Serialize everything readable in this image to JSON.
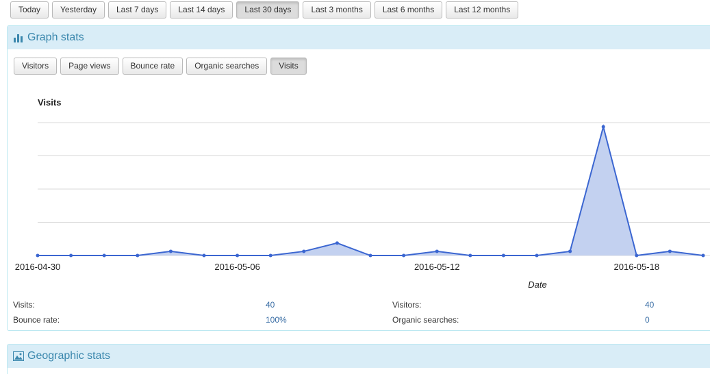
{
  "toolbar": {
    "buttons": [
      "Today",
      "Yesterday",
      "Last 7 days",
      "Last 14 days",
      "Last 30 days",
      "Last 3 months",
      "Last 6 months",
      "Last 12 months"
    ],
    "active": 4
  },
  "graph_panel": {
    "title": "Graph stats",
    "buttons": [
      "Visitors",
      "Page views",
      "Bounce rate",
      "Organic searches",
      "Visits"
    ],
    "active": 4,
    "stats": [
      [
        "Visits:",
        "40"
      ],
      [
        "Visitors:",
        "40"
      ],
      [
        "Bounce rate:",
        "100%"
      ],
      [
        "Organic searches:",
        "0"
      ]
    ]
  },
  "chart_data": {
    "type": "area",
    "title": "Visits",
    "x_label": "Date",
    "categories": [
      "2016-04-30",
      null,
      null,
      null,
      null,
      null,
      "2016-05-06",
      null,
      null,
      null,
      null,
      null,
      "2016-05-12",
      null,
      null,
      null,
      null,
      null,
      "2016-05-18",
      null,
      null
    ],
    "values": [
      0,
      0,
      0,
      0,
      1,
      0,
      0,
      0,
      1,
      3,
      0,
      0,
      1,
      0,
      0,
      0,
      1,
      31,
      0,
      1,
      0
    ],
    "color": "#3b66d1",
    "fill": "#c3d1f0",
    "ylim": [
      0,
      32
    ],
    "yticks": [
      0,
      8,
      16,
      24,
      32
    ],
    "grid": true
  },
  "geo_panel": {
    "title": "Geographic stats"
  }
}
